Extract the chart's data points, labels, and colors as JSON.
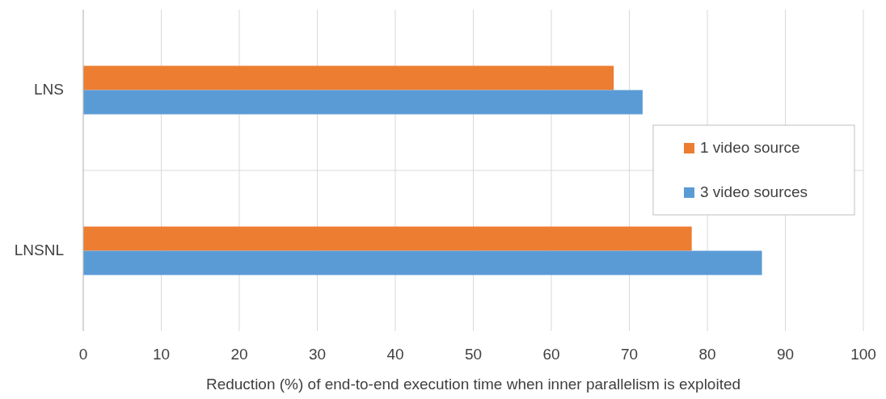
{
  "chart_data": {
    "type": "bar",
    "orientation": "horizontal",
    "xlabel": "Reduction (%) of end-to-end execution time when inner parallelism is exploited",
    "categories": [
      "LNS",
      "LNSNL"
    ],
    "series": [
      {
        "name": "1 video source",
        "color": "#ed7d31",
        "values": [
          68,
          78
        ]
      },
      {
        "name": "3 video sources",
        "color": "#5b9bd5",
        "values": [
          71.7,
          87
        ]
      }
    ],
    "xlim": [
      0,
      100
    ],
    "xticks": [
      0,
      10,
      20,
      30,
      40,
      50,
      60,
      70,
      80,
      90,
      100
    ],
    "grid": "x",
    "legend": "right"
  }
}
